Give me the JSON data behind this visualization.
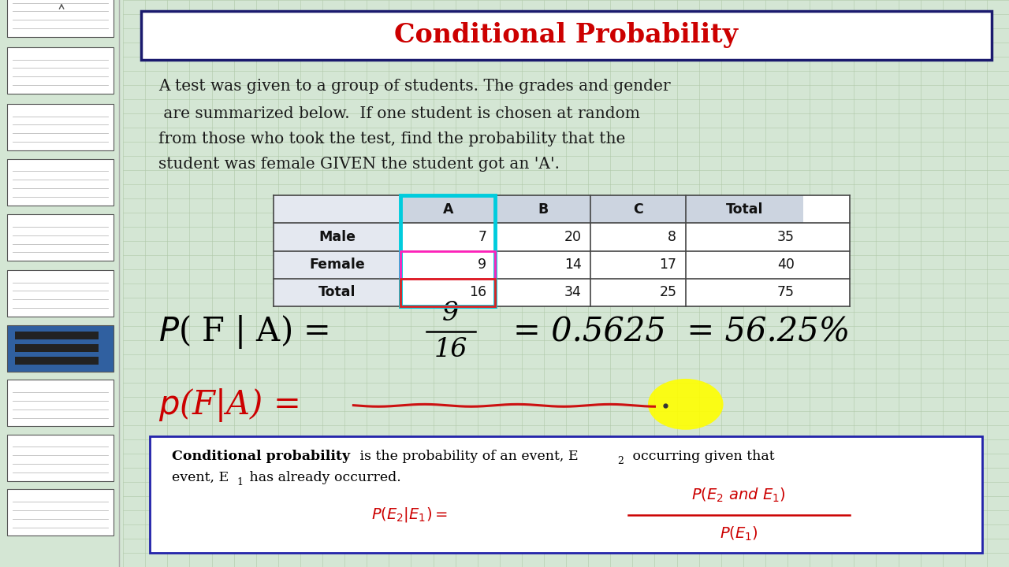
{
  "title": "Conditional Probability",
  "title_color": "#cc0000",
  "title_fontsize": 24,
  "problem_lines": [
    "A test was given to a group of students. The grades and gender",
    " are summarized below.  If one student is chosen at random",
    "from those who took the test, find the probability that the",
    "student was female GIVEN the student got an 'A'."
  ],
  "table_col_headers": [
    "",
    "A",
    "B",
    "C",
    "Total"
  ],
  "table_rows": [
    [
      "Male",
      "7",
      "20",
      "8",
      "35"
    ],
    [
      "Female",
      "9",
      "14",
      "17",
      "40"
    ],
    [
      "Total",
      "16",
      "34",
      "25",
      "75"
    ]
  ],
  "bg_color": "#d4e6d4",
  "grid_color": "#b0c8a8",
  "sidebar_bg": "#c8ccc8",
  "sidebar_thumb_color": "#e8ece8",
  "sidebar_active_color": "#3060a0"
}
